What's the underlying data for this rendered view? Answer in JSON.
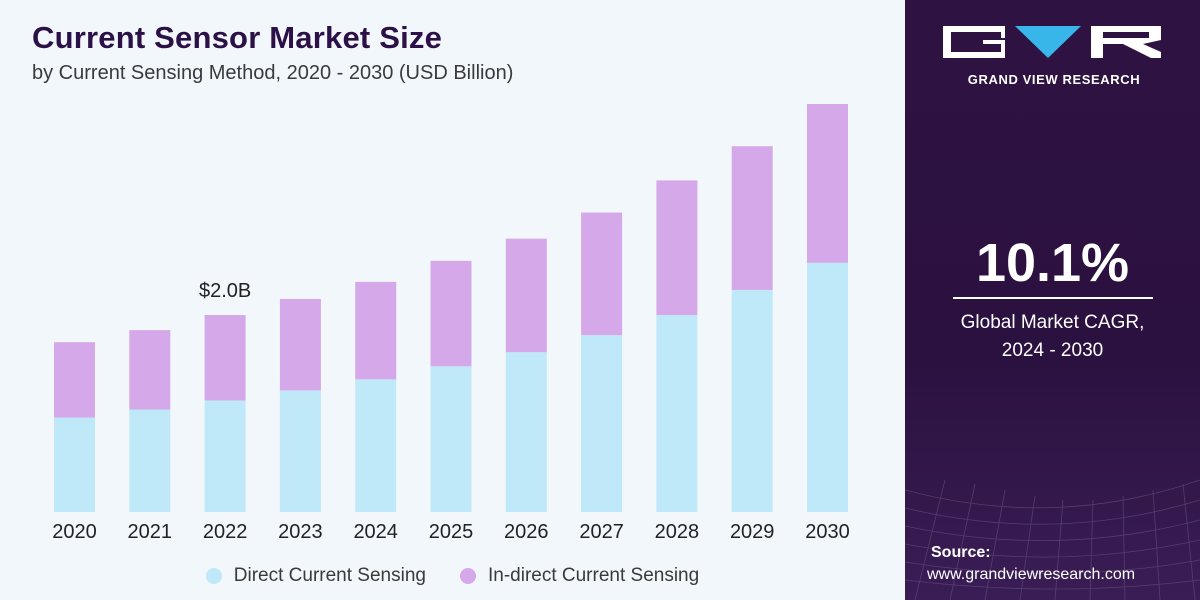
{
  "header": {
    "title": "Current Sensor Market Size",
    "subtitle": "by Current Sensing Method, 2020 - 2030 (USD Billion)"
  },
  "chart_data": {
    "type": "bar",
    "stacked": true,
    "categories": [
      "2020",
      "2021",
      "2022",
      "2023",
      "2024",
      "2025",
      "2026",
      "2027",
      "2028",
      "2029",
      "2030"
    ],
    "series": [
      {
        "name": "Direct Current Sensing",
        "color": "#bfe8f9",
        "values": [
          0.94,
          1.02,
          1.11,
          1.21,
          1.32,
          1.45,
          1.59,
          1.76,
          1.96,
          2.21,
          2.48
        ]
      },
      {
        "name": "In-direct Current Sensing",
        "color": "#d5a8e9",
        "values": [
          0.75,
          0.79,
          0.85,
          0.91,
          0.97,
          1.05,
          1.13,
          1.22,
          1.34,
          1.43,
          1.58
        ]
      }
    ],
    "annotations": [
      {
        "category": "2022",
        "text": "$2.0B"
      }
    ],
    "ylim": [
      0,
      4.1
    ],
    "grid": false,
    "legend_position": "bottom"
  },
  "sidebar": {
    "brand": "GRAND VIEW RESEARCH",
    "cagr_value": "10.1%",
    "cagr_label_line1": "Global Market CAGR,",
    "cagr_label_line2": "2024 - 2030",
    "source_label": "Source:",
    "source_url": "www.grandviewresearch.com",
    "logo_colors": {
      "light": "#ffffff",
      "accent": "#38b6e9"
    }
  }
}
